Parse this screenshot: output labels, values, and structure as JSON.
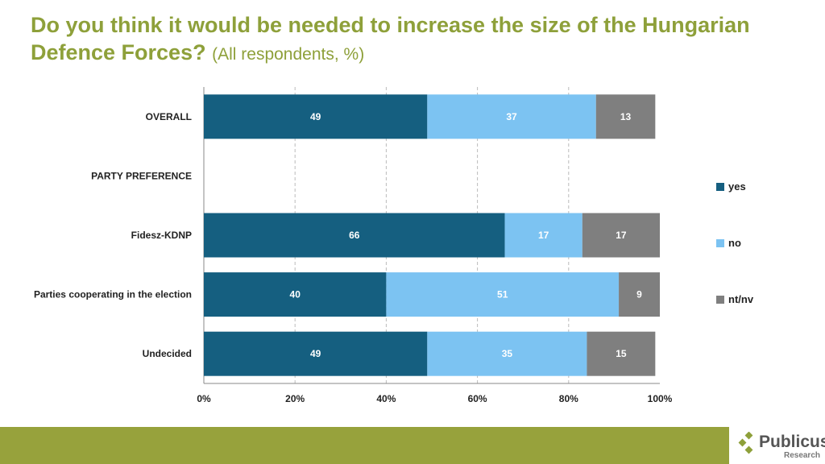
{
  "title": "Do you think it would be needed to increase the size of the Hungarian Defence Forces?",
  "subtitle": "(All respondents, %)",
  "logo": {
    "name": "Publicus",
    "tagline": "Research"
  },
  "chart_data": {
    "type": "bar",
    "orientation": "horizontal",
    "stacked": true,
    "percent_stacked": true,
    "categories": [
      "OVERALL",
      "PARTY PREFERENCE",
      "Fidesz-KDNP",
      "Parties cooperating  in the election",
      "Undecided"
    ],
    "series": [
      {
        "name": "yes",
        "color": "#155f80",
        "values": [
          49,
          null,
          66,
          40,
          49
        ]
      },
      {
        "name": "no",
        "color": "#7cc3f2",
        "values": [
          37,
          null,
          17,
          51,
          35
        ]
      },
      {
        "name": "nt/nv",
        "color": "#7f7f7f",
        "values": [
          13,
          null,
          17,
          9,
          15
        ]
      }
    ],
    "xlim": [
      0,
      100
    ],
    "xticks": [
      "0%",
      "20%",
      "40%",
      "60%",
      "80%",
      "100%"
    ],
    "grid": "vertical dashed",
    "legend": "right"
  }
}
